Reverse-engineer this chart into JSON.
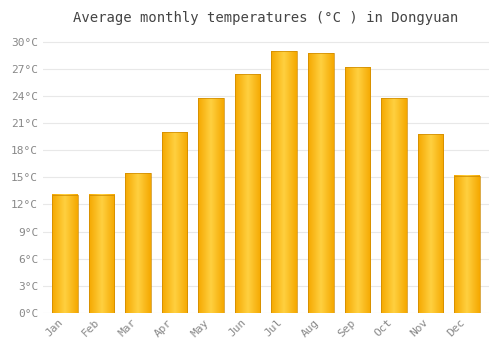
{
  "title": "Average monthly temperatures (°C ) in Dongyuan",
  "months": [
    "Jan",
    "Feb",
    "Mar",
    "Apr",
    "May",
    "Jun",
    "Jul",
    "Aug",
    "Sep",
    "Oct",
    "Nov",
    "Dec"
  ],
  "temperatures": [
    13.1,
    13.1,
    15.5,
    20.0,
    23.8,
    26.5,
    29.0,
    28.8,
    27.2,
    23.8,
    19.8,
    15.2
  ],
  "bar_color_center": "#FFD040",
  "bar_color_edge": "#F5A800",
  "bar_border_color": "#CC8800",
  "ylim": [
    0,
    31
  ],
  "yticks": [
    0,
    3,
    6,
    9,
    12,
    15,
    18,
    21,
    24,
    27,
    30
  ],
  "ytick_labels": [
    "0°C",
    "3°C",
    "6°C",
    "9°C",
    "12°C",
    "15°C",
    "18°C",
    "21°C",
    "24°C",
    "27°C",
    "30°C"
  ],
  "background_color": "#FFFFFF",
  "grid_color": "#E8E8E8",
  "title_fontsize": 10,
  "tick_fontsize": 8,
  "font_family": "monospace",
  "title_color": "#444444",
  "tick_color": "#888888"
}
